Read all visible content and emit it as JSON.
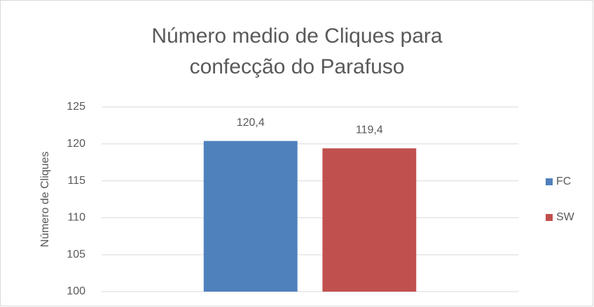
{
  "chart_data": {
    "type": "bar",
    "title": "Número medio de Cliques para confecção do Parafuso",
    "ylabel": "Número de Cliques",
    "categories": [
      null
    ],
    "series": [
      {
        "name": "FC",
        "color": "#4f81bd",
        "values": [
          120.4
        ],
        "value_labels": [
          "120,4"
        ]
      },
      {
        "name": "SW",
        "color": "#c0504d",
        "values": [
          119.4
        ],
        "value_labels": [
          "119,4"
        ]
      }
    ],
    "ylim": [
      100,
      125
    ],
    "yticks": [
      100,
      105,
      110,
      115,
      120,
      125
    ],
    "grid": true,
    "legend": "right"
  }
}
